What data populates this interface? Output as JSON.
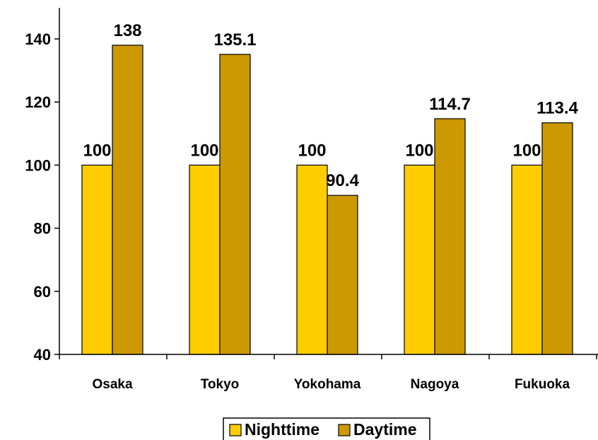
{
  "chart_data": {
    "type": "bar",
    "title": "",
    "xlabel": "",
    "ylabel": "",
    "categories": [
      "Osaka",
      "Tokyo",
      "Yokohama",
      "Nagoya",
      "Fukuoka"
    ],
    "series": [
      {
        "name": "Nighttime",
        "values": [
          100,
          100,
          100,
          100,
          100
        ],
        "color": "#FFCC00"
      },
      {
        "name": "Daytime",
        "values": [
          138,
          135.1,
          90.4,
          114.7,
          113.4
        ],
        "color": "#CC9900"
      }
    ],
    "data_labels": [
      [
        "100",
        "100",
        "100",
        "100",
        "100"
      ],
      [
        "138",
        "135.1",
        "90.4",
        "114.7",
        "113.4"
      ]
    ],
    "ylim": [
      40,
      150
    ],
    "yticks": [
      40,
      60,
      80,
      100,
      120,
      140
    ],
    "grid": false,
    "legend_position": "bottom"
  }
}
